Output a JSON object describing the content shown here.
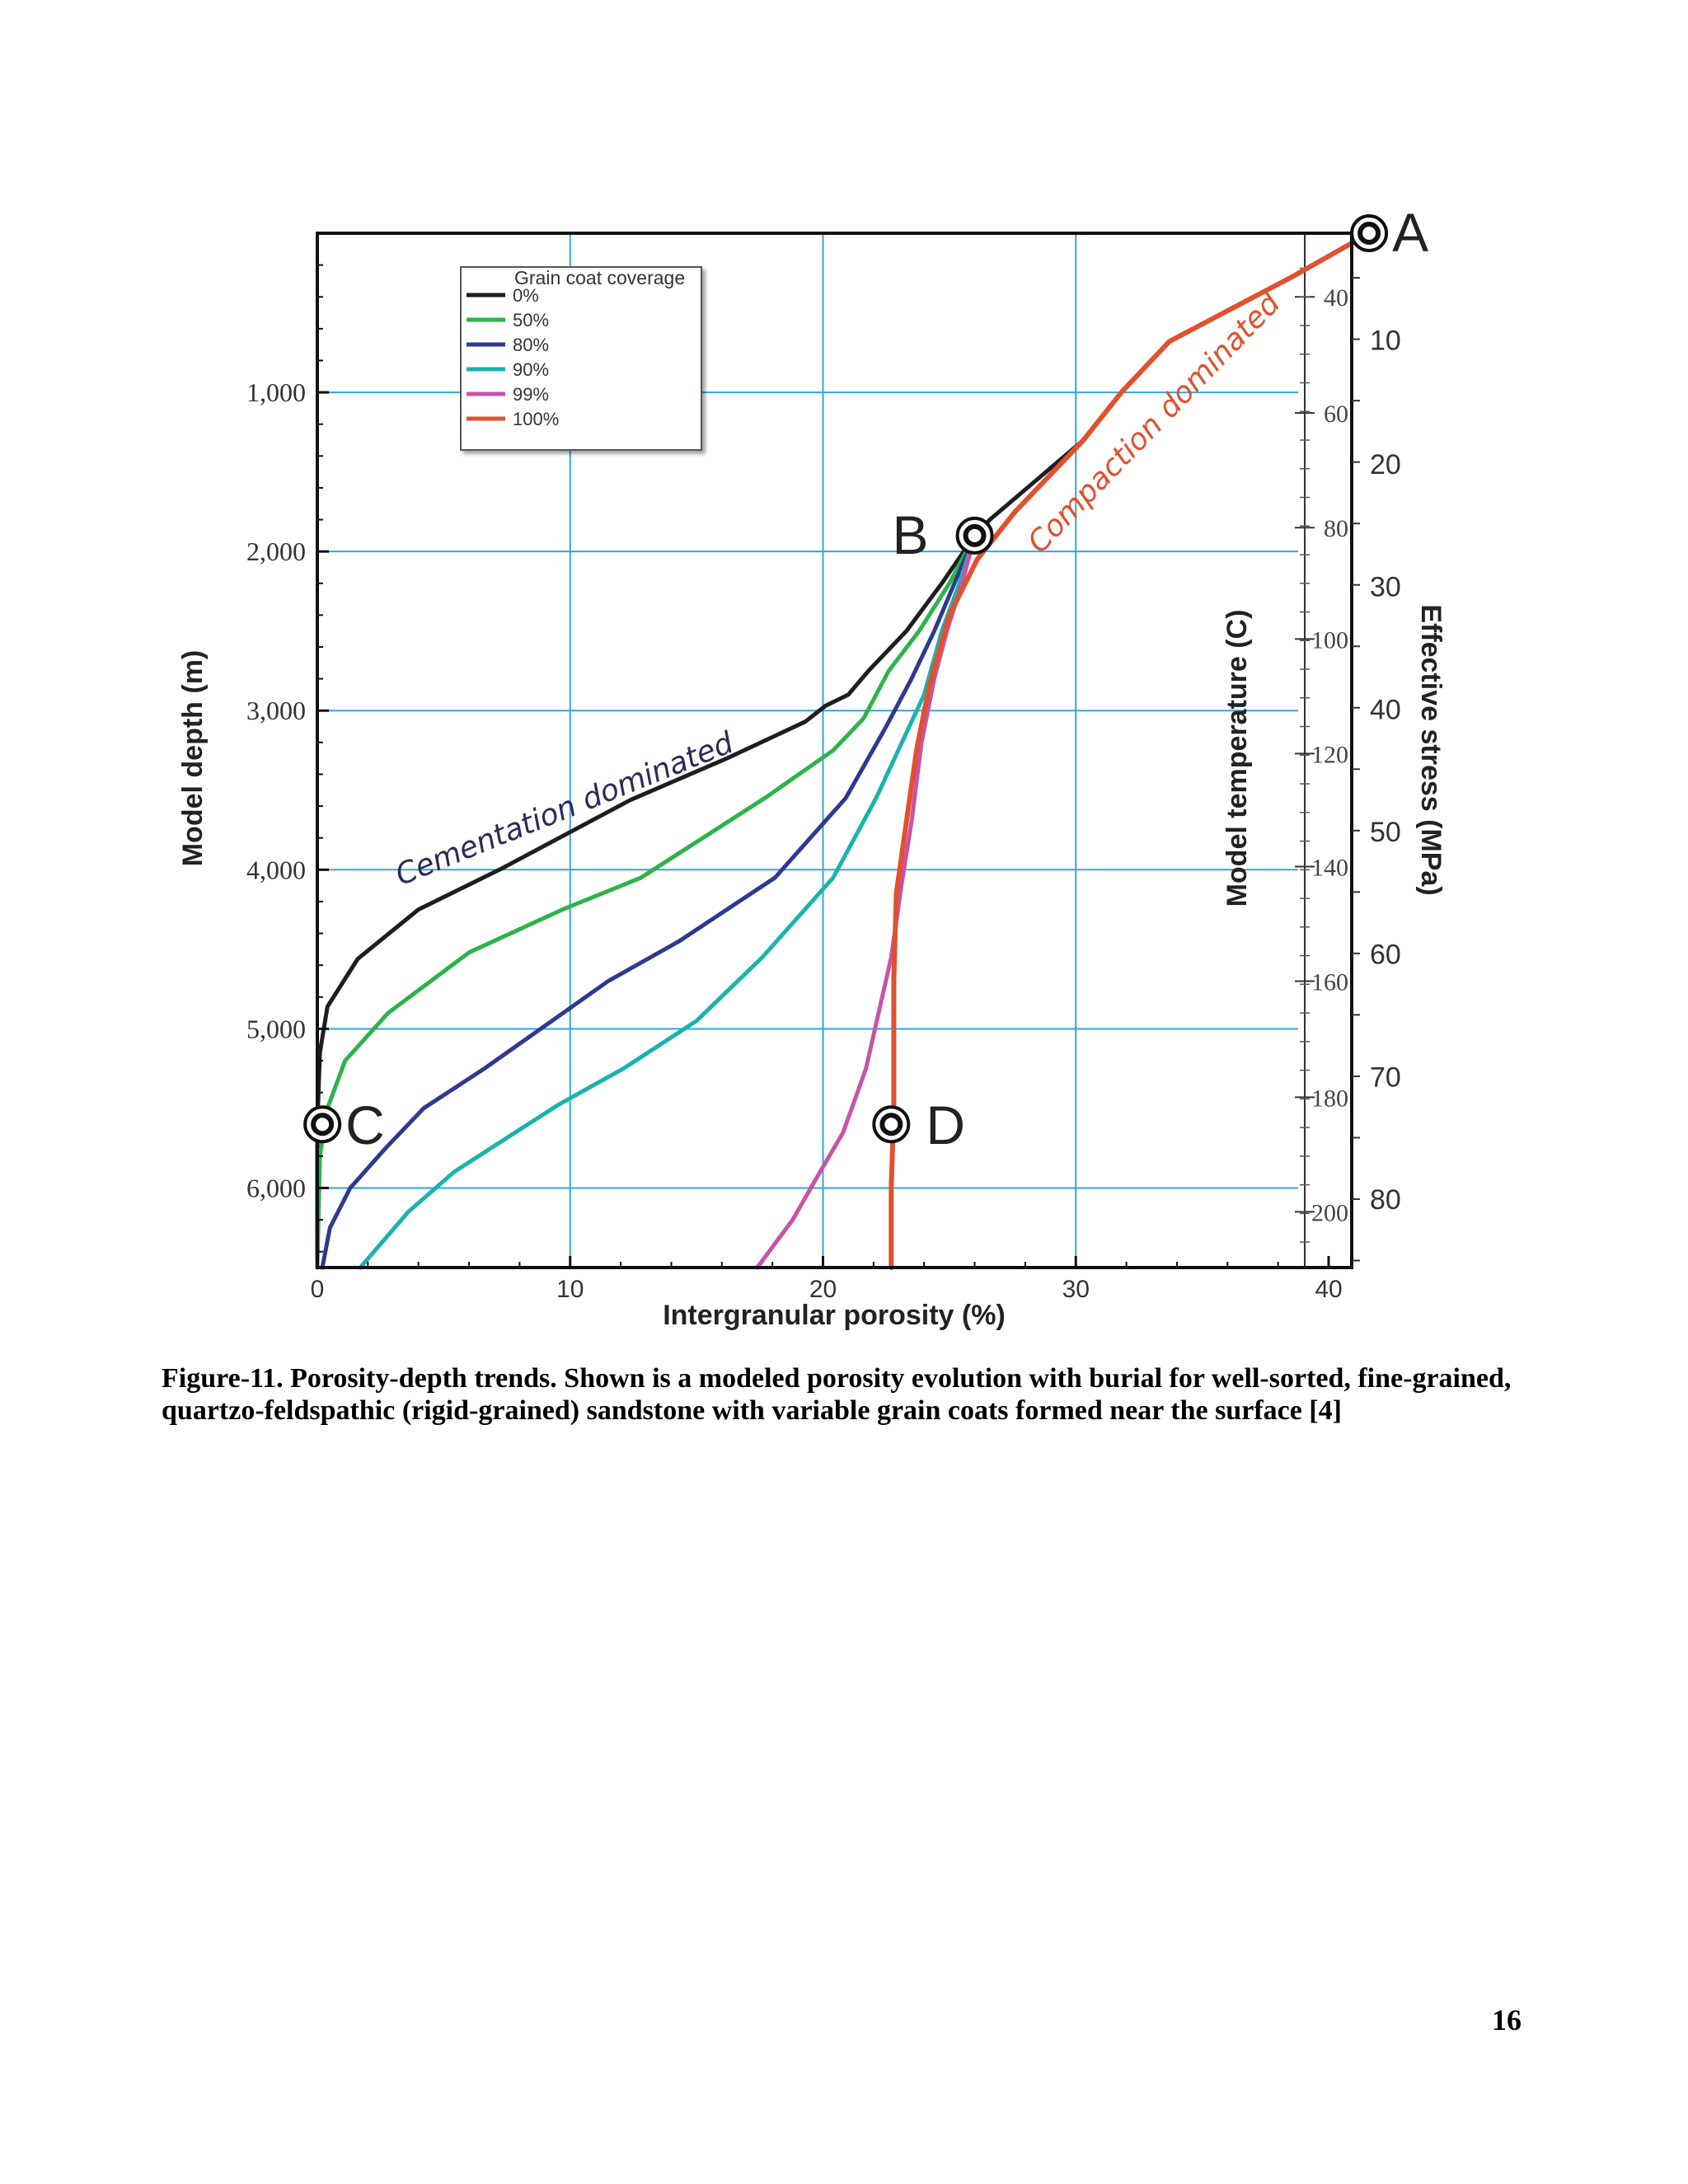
{
  "figure": {
    "caption": "Figure-11. Porosity-depth trends. Shown is a modeled porosity evolution with burial for well-sorted, fine-grained, quartzo-feldspathic (rigid-grained) sandstone with variable grain coats formed near the surface [4]",
    "page_number": "16"
  },
  "chart_data": {
    "type": "line",
    "xlabel": "Intergranular porosity (%)",
    "ylabel": "Model depth (m)",
    "xlim": [
      0,
      40
    ],
    "ylim": [
      6500,
      0
    ],
    "x_ticks": [
      0,
      10,
      20,
      30,
      40
    ],
    "x_tick_labels": [
      "0",
      "10",
      "20",
      "30",
      "40"
    ],
    "y_ticks": [
      1000,
      2000,
      3000,
      4000,
      5000,
      6000
    ],
    "y_tick_labels": [
      "1,000",
      "2,000",
      "3,000",
      "4,000",
      "5,000",
      "6,000"
    ],
    "grid": true,
    "legend": {
      "title": "Grain coat coverage",
      "placement": "top-left"
    },
    "series": [
      {
        "name": "0%",
        "color": "#1e1e1e",
        "points": [
          [
            41.6,
            0
          ],
          [
            38.6,
            270
          ],
          [
            33.7,
            680
          ],
          [
            31.8,
            1000
          ],
          [
            30.3,
            1300
          ],
          [
            26.6,
            1800
          ],
          [
            26.0,
            1900
          ],
          [
            24.7,
            2200
          ],
          [
            23.3,
            2500
          ],
          [
            21.8,
            2750
          ],
          [
            21.0,
            2900
          ],
          [
            20.1,
            2970
          ],
          [
            19.3,
            3070
          ],
          [
            16.2,
            3300
          ],
          [
            12.4,
            3560
          ],
          [
            7.2,
            4000
          ],
          [
            4.0,
            4250
          ],
          [
            1.6,
            4560
          ],
          [
            0.4,
            4860
          ],
          [
            0.1,
            5150
          ],
          [
            0.0,
            5600
          ],
          [
            0.0,
            6500
          ]
        ]
      },
      {
        "name": "50%",
        "color": "#2db34a",
        "points": [
          [
            26.0,
            1900
          ],
          [
            25.0,
            2200
          ],
          [
            23.8,
            2500
          ],
          [
            22.6,
            2750
          ],
          [
            21.6,
            3050
          ],
          [
            20.4,
            3250
          ],
          [
            17.7,
            3550
          ],
          [
            12.8,
            4050
          ],
          [
            9.7,
            4250
          ],
          [
            6.0,
            4520
          ],
          [
            2.8,
            4900
          ],
          [
            1.1,
            5200
          ],
          [
            0.4,
            5500
          ],
          [
            0.1,
            5800
          ],
          [
            0.0,
            6500
          ]
        ]
      },
      {
        "name": "80%",
        "color": "#2e3a8f",
        "points": [
          [
            26.0,
            1900
          ],
          [
            25.2,
            2200
          ],
          [
            24.4,
            2500
          ],
          [
            23.5,
            2800
          ],
          [
            22.5,
            3100
          ],
          [
            20.9,
            3550
          ],
          [
            18.1,
            4050
          ],
          [
            14.3,
            4450
          ],
          [
            11.5,
            4700
          ],
          [
            6.6,
            5250
          ],
          [
            4.2,
            5500
          ],
          [
            2.7,
            5750
          ],
          [
            1.3,
            6000
          ],
          [
            0.5,
            6250
          ],
          [
            0.2,
            6500
          ]
        ]
      },
      {
        "name": "90%",
        "color": "#1bb3ae",
        "points": [
          [
            26.0,
            1900
          ],
          [
            25.4,
            2200
          ],
          [
            24.7,
            2500
          ],
          [
            24.0,
            2900
          ],
          [
            22.1,
            3550
          ],
          [
            20.4,
            4050
          ],
          [
            17.6,
            4550
          ],
          [
            15.0,
            4950
          ],
          [
            12.1,
            5250
          ],
          [
            9.5,
            5480
          ],
          [
            5.4,
            5900
          ],
          [
            3.6,
            6150
          ],
          [
            1.7,
            6500
          ]
        ]
      },
      {
        "name": "99%",
        "color": "#c853a8",
        "points": [
          [
            26.0,
            1900
          ],
          [
            25.5,
            2200
          ],
          [
            24.9,
            2500
          ],
          [
            24.4,
            2800
          ],
          [
            23.9,
            3200
          ],
          [
            23.5,
            3700
          ],
          [
            23.1,
            4100
          ],
          [
            22.7,
            4550
          ],
          [
            21.7,
            5250
          ],
          [
            20.8,
            5650
          ],
          [
            19.7,
            5950
          ],
          [
            18.8,
            6200
          ],
          [
            17.4,
            6500
          ]
        ]
      },
      {
        "name": "100%",
        "color": "#e2502d",
        "points": [
          [
            41.6,
            0
          ],
          [
            38.6,
            270
          ],
          [
            33.7,
            680
          ],
          [
            31.8,
            1000
          ],
          [
            30.3,
            1300
          ],
          [
            27.6,
            1750
          ],
          [
            26.1,
            2050
          ],
          [
            25.0,
            2400
          ],
          [
            24.2,
            2850
          ],
          [
            23.7,
            3250
          ],
          [
            23.3,
            3700
          ],
          [
            22.9,
            4150
          ],
          [
            22.8,
            4700
          ],
          [
            22.8,
            5500
          ],
          [
            22.7,
            6000
          ],
          [
            22.7,
            6500
          ]
        ]
      }
    ],
    "markers": [
      {
        "label": "A",
        "x": 41.6,
        "y": 0
      },
      {
        "label": "B",
        "x": 26.0,
        "y": 1900
      },
      {
        "label": "C",
        "x": 0.2,
        "y": 5600
      },
      {
        "label": "D",
        "x": 22.7,
        "y": 5600
      }
    ],
    "annotations": [
      {
        "text": "Cementation dominated",
        "color": "#2b2b5a",
        "x": 3.3,
        "y": 4100,
        "angle": -22
      },
      {
        "text": "Compaction dominated",
        "color": "#e2502d",
        "x": 28.6,
        "y": 2020,
        "angle": -46
      }
    ],
    "secondary_axes": [
      {
        "label": "Model temperature (C)",
        "ticks": [
          {
            "value": "40",
            "depth": 400
          },
          {
            "value": "60",
            "depth": 1130
          },
          {
            "value": "80",
            "depth": 1850
          },
          {
            "value": "100",
            "depth": 2550
          },
          {
            "value": "120",
            "depth": 3270
          },
          {
            "value": "140",
            "depth": 3980
          },
          {
            "value": "160",
            "depth": 4700
          },
          {
            "value": "180",
            "depth": 5430
          },
          {
            "value": "200",
            "depth": 6150
          }
        ]
      },
      {
        "label": "Effective stress (MPa)",
        "ticks": [
          {
            "value": "10",
            "depth": 670
          },
          {
            "value": "20",
            "depth": 1450
          },
          {
            "value": "30",
            "depth": 2220
          },
          {
            "value": "40",
            "depth": 2990
          },
          {
            "value": "50",
            "depth": 3760
          },
          {
            "value": "60",
            "depth": 4530
          },
          {
            "value": "70",
            "depth": 5300
          },
          {
            "value": "80",
            "depth": 6070
          }
        ]
      }
    ]
  }
}
